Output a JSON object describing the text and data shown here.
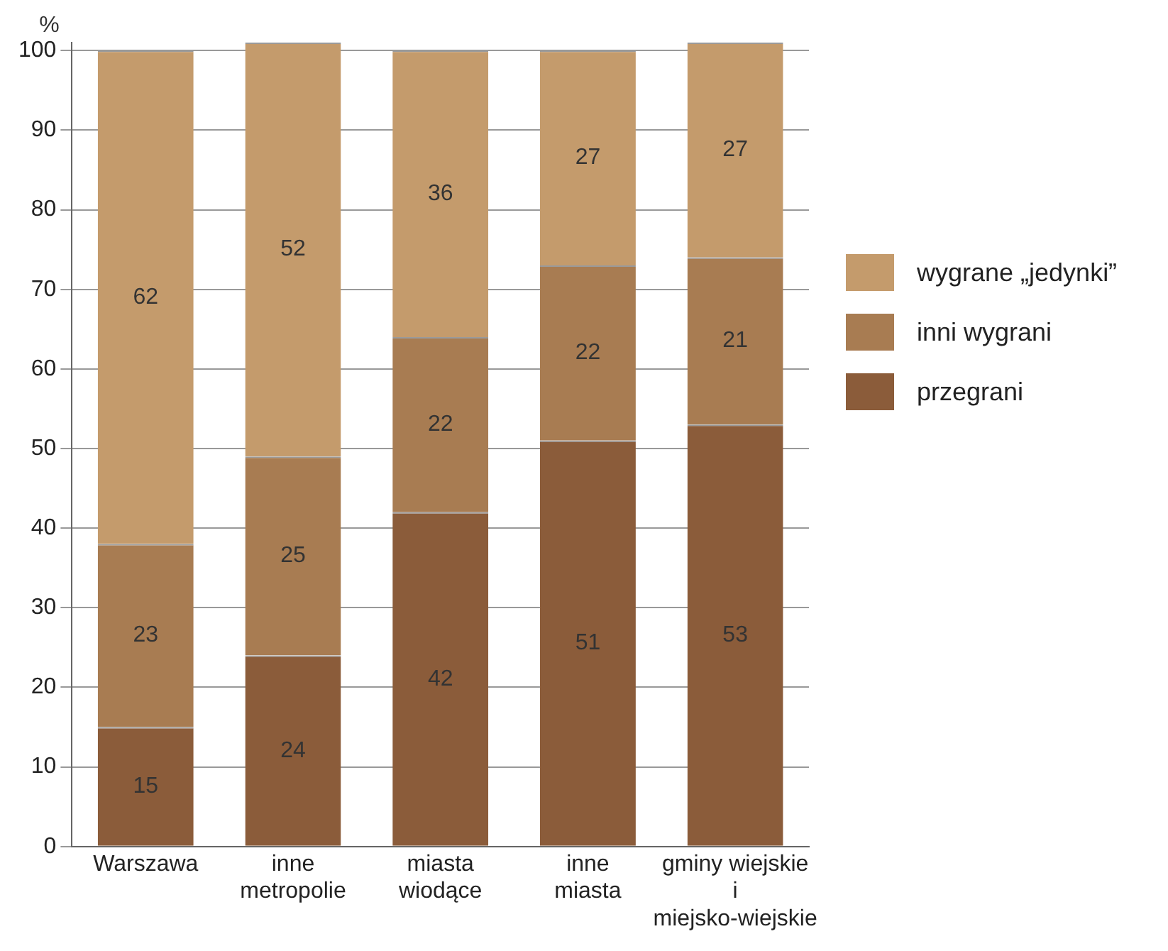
{
  "chart_data": {
    "type": "bar",
    "stacked": true,
    "ylabel": "%",
    "categories": [
      "Warszawa",
      "inne\nmetropolie",
      "miasta\nwiodące",
      "inne\nmiasta",
      "gminy wiejskie\ni\nmiejsko-wiejskie"
    ],
    "series": [
      {
        "name": "przegrani",
        "color": "#8b5c3a",
        "values": [
          15,
          24,
          42,
          51,
          53
        ]
      },
      {
        "name": "inni wygrani",
        "color": "#a87c52",
        "values": [
          23,
          25,
          22,
          22,
          21
        ]
      },
      {
        "name": "wygrane „jedynki”",
        "color": "#c49b6c",
        "values": [
          62,
          52,
          36,
          27,
          27
        ]
      }
    ],
    "ylim": [
      0,
      101
    ],
    "yticks": [
      0,
      10,
      20,
      30,
      40,
      50,
      60,
      70,
      80,
      90,
      100
    ],
    "grid": "y",
    "legend": "right",
    "data_labels": true
  }
}
